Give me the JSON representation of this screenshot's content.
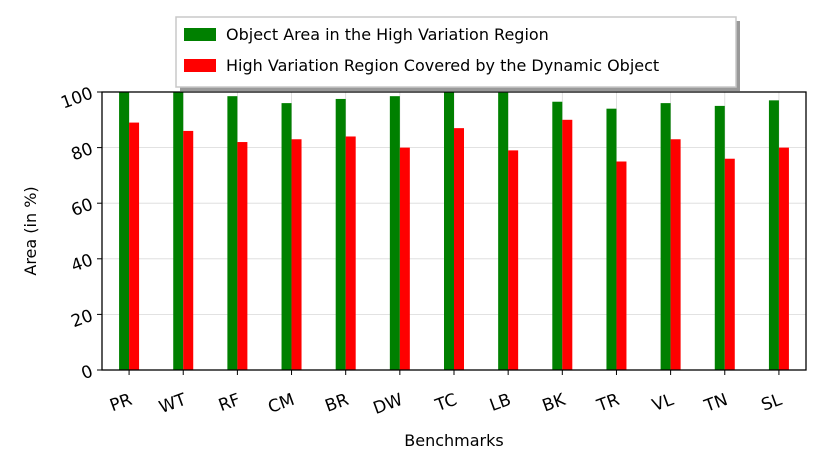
{
  "chart_data": {
    "type": "bar",
    "categories": [
      "PR",
      "WT",
      "RF",
      "CM",
      "BR",
      "DW",
      "TC",
      "LB",
      "BK",
      "TR",
      "VL",
      "TN",
      "SL"
    ],
    "series": [
      {
        "name": "Object Area in the High Variation Region",
        "color": "#008000",
        "values": [
          100,
          100,
          98.5,
          96,
          97.5,
          98.5,
          100,
          99.8,
          96.5,
          94,
          96,
          95,
          97
        ]
      },
      {
        "name": "High Variation Region Covered by the Dynamic Object",
        "color": "#ff0000",
        "values": [
          89,
          86,
          82,
          83,
          84,
          80,
          87,
          79,
          90,
          75,
          83,
          76,
          80
        ]
      }
    ],
    "xlabel": "Benchmarks",
    "ylabel": "Area (in %)",
    "ylim": [
      0,
      100
    ],
    "yticks": [
      0,
      20,
      40,
      60,
      80,
      100
    ],
    "grid": true,
    "legend": "top-center"
  }
}
